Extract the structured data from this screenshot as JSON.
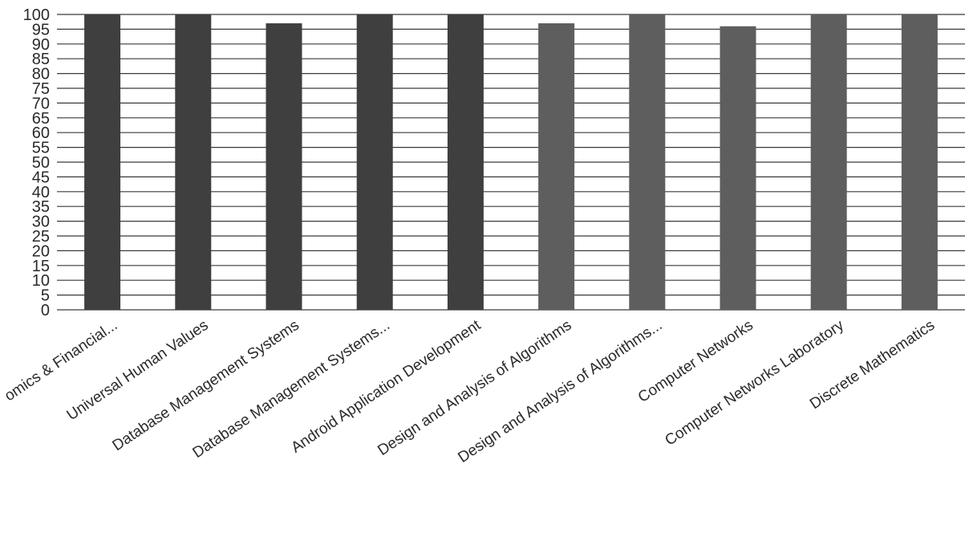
{
  "chart_data": {
    "type": "bar",
    "title": "",
    "xlabel": "",
    "ylabel": "",
    "ylim": [
      0,
      100
    ],
    "y_ticks": [
      0,
      5,
      10,
      15,
      20,
      25,
      30,
      35,
      40,
      45,
      50,
      55,
      60,
      65,
      70,
      75,
      80,
      85,
      90,
      95,
      100
    ],
    "grid": true,
    "legend": "none",
    "categories": [
      "omics & Financial...",
      "Universal Human Values",
      "Database Management Systems",
      "Database Management Systems...",
      "Android Application Development",
      "Design and Analysis of Algorithms",
      "Design and Analysis of Algorithms...",
      "Computer Networks",
      "Computer Networks Laboratory",
      "Discrete Mathematics"
    ],
    "values": [
      100,
      100,
      97,
      100,
      100,
      97,
      100,
      96,
      100,
      100
    ],
    "colors": {
      "bar_dark": "#3f3f3f",
      "bar_light": "#5e5e5e",
      "grid": "#3a3a3a",
      "text": "#2a2a2a"
    }
  }
}
